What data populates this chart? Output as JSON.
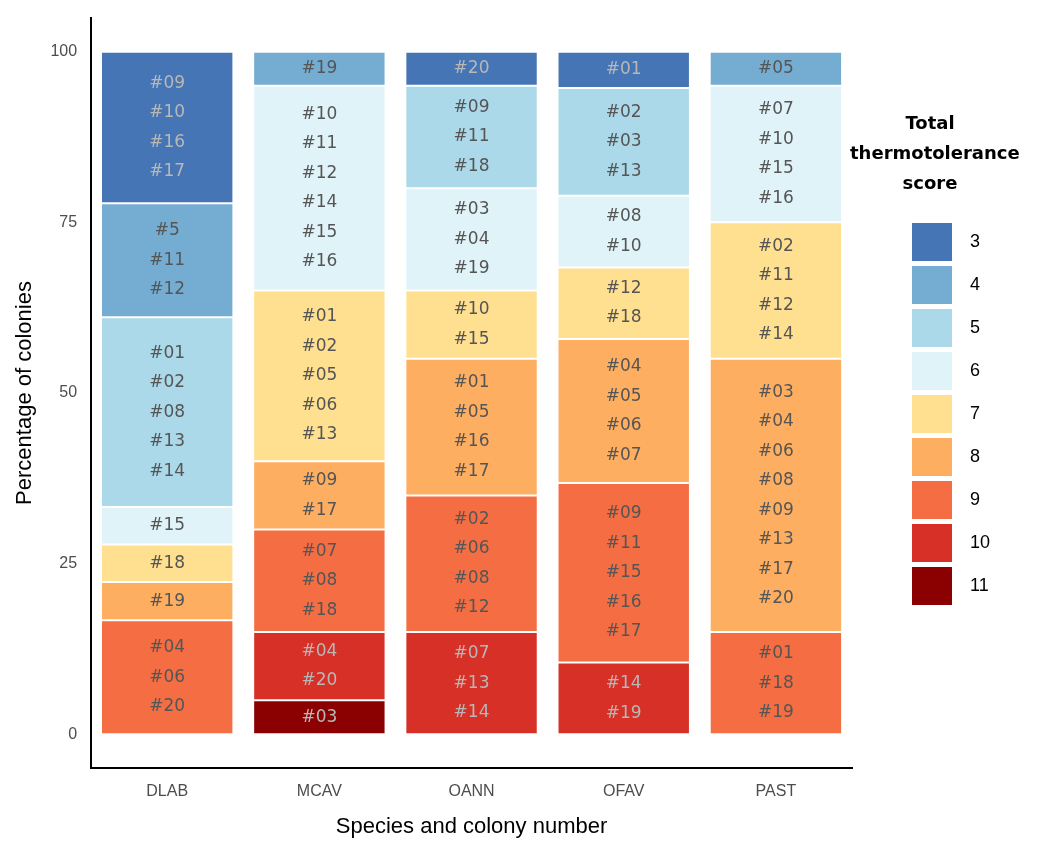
{
  "chart_data": {
    "type": "bar",
    "stacked": true,
    "xlabel": "Species and colony number",
    "ylabel": "Percentage of colonies",
    "legend_title": "Total thermotolerance score",
    "legend": "right",
    "grid": false,
    "categories": [
      "DLAB",
      "MCAV",
      "OANN",
      "OFAV",
      "PAST"
    ],
    "ylim": [
      -5,
      105
    ],
    "yticks": [
      0,
      25,
      50,
      75,
      100
    ],
    "series": [
      {
        "name": "11",
        "color": "#8b0000",
        "values": [
          null,
          5,
          null,
          null,
          null
        ]
      },
      {
        "name": "10",
        "color": "#d73027",
        "values": [
          null,
          10,
          15,
          10.5,
          null
        ]
      },
      {
        "name": "9",
        "color": "#f46d43",
        "values": [
          16.7,
          15,
          20,
          26.3,
          15
        ]
      },
      {
        "name": "8",
        "color": "#fdae61",
        "values": [
          5.6,
          10,
          20,
          21.1,
          40
        ]
      },
      {
        "name": "7",
        "color": "#fee090",
        "values": [
          5.5,
          25,
          10,
          10.5,
          20
        ]
      },
      {
        "name": "6",
        "color": "#e0f3f8",
        "values": [
          5.5,
          30,
          15,
          10.5,
          20
        ]
      },
      {
        "name": "5",
        "color": "#abd9e9",
        "values": [
          27.8,
          null,
          15,
          15.8,
          null
        ]
      },
      {
        "name": "4",
        "color": "#74add1",
        "values": [
          16.7,
          5,
          null,
          null,
          5
        ]
      },
      {
        "name": "3",
        "color": "#4575b4",
        "values": [
          22.2,
          null,
          5,
          5.3,
          null
        ]
      }
    ],
    "annotations": [
      "#04\n#06\n#20",
      "#19",
      "#18",
      "#15",
      "#01\n#02\n#08\n#13\n#14",
      "#5\n#11\n#12",
      "#09\n#10\n#16\n#17",
      "#03",
      "#04\n#20",
      "#07\n#08\n#18",
      "#09\n#17",
      "#01\n#02\n#05\n#06\n#13",
      "#10\n#11\n#12\n#14\n#15\n#16",
      "#19",
      "#07\n#13\n#14",
      "#02\n#06\n#08\n#12",
      "#01\n#05\n#16\n#17",
      "#10\n#15",
      "#03\n#04\n#19",
      "#09\n#11\n#18",
      "#20",
      "#14\n#19",
      "#09\n#11\n#15\n#16\n#17",
      "#04\n#05\n#06\n#07",
      "#12\n#18",
      "#08\n#10",
      "#02\n#03\n#13",
      "#01",
      "#01\n#18\n#19",
      "#03\n#04\n#06\n#08\n#09\n#13\n#17\n#20",
      "#02\n#11\n#12\n#14",
      "#07\n#10\n#15\n#16",
      "#05"
    ]
  }
}
